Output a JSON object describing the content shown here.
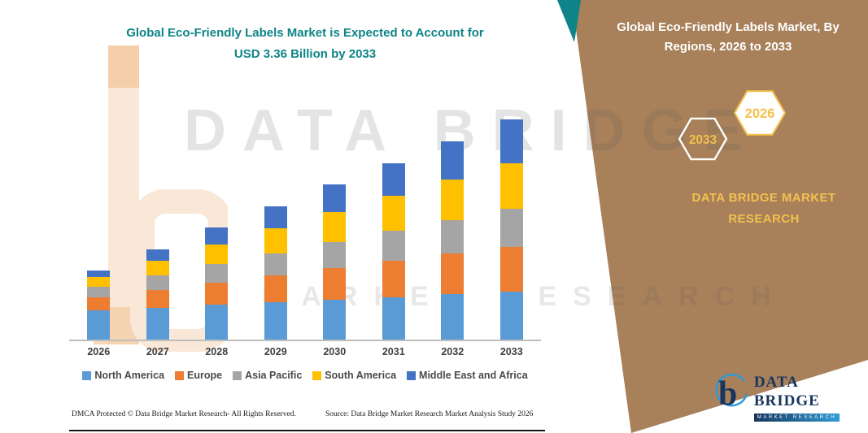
{
  "title": {
    "line1": "Global Eco-Friendly Labels Market is Expected to Account for",
    "line2": "USD 3.36 Billion by 2033"
  },
  "panel": {
    "heading": "Global Eco-Friendly Labels Market, By Regions, 2026 to 2033",
    "hexagons": [
      {
        "label": "2033",
        "style": "outline"
      },
      {
        "label": "2026",
        "style": "filled"
      }
    ],
    "brand_line1": "DATA BRIDGE MARKET",
    "brand_line2": "RESEARCH"
  },
  "watermark": {
    "line1": "DATA BRIDGE",
    "line2": "MARKET RESEARCH"
  },
  "colors": {
    "title_teal": "#0E8486",
    "panel_brown": "#A8805A",
    "accent_teal": "#0E8388",
    "gold": "#F2C14E",
    "logo_navy": "#17365D",
    "logo_blue": "#2E9BD6"
  },
  "chart_data": {
    "type": "bar",
    "stacked": true,
    "title": "Global Eco-Friendly Labels Market is Expected to Account for USD 3.36 Billion by 2033",
    "unit": "USD Billion",
    "categories": [
      "2026",
      "2027",
      "2028",
      "2029",
      "2030",
      "2031",
      "2032",
      "2033"
    ],
    "series": [
      {
        "name": "North America",
        "color": "#5B9BD5",
        "values": [
          0.45,
          0.49,
          0.53,
          0.57,
          0.61,
          0.65,
          0.69,
          0.73
        ]
      },
      {
        "name": "Europe",
        "color": "#ED7D31",
        "values": [
          0.2,
          0.27,
          0.34,
          0.41,
          0.48,
          0.55,
          0.62,
          0.69
        ]
      },
      {
        "name": "Asia Pacific",
        "color": "#A5A5A5",
        "values": [
          0.16,
          0.22,
          0.28,
          0.34,
          0.4,
          0.46,
          0.52,
          0.58
        ]
      },
      {
        "name": "South America",
        "color": "#FFC000",
        "values": [
          0.14,
          0.22,
          0.3,
          0.38,
          0.46,
          0.54,
          0.62,
          0.7
        ]
      },
      {
        "name": "Middle East and Africa",
        "color": "#4472C4",
        "values": [
          0.1,
          0.18,
          0.26,
          0.34,
          0.42,
          0.5,
          0.58,
          0.66
        ]
      }
    ],
    "xlabel": "",
    "ylabel": "",
    "ylim": [
      0,
      3.6
    ],
    "grid": false,
    "legend_position": "bottom"
  },
  "footer": {
    "dmca": "DMCA Protected © Data Bridge Market Research-  All Rights Reserved.",
    "source": "Source: Data Bridge Market Research  Market Analysis Study 2026"
  },
  "logo": {
    "wordmark": "DATA BRIDGE",
    "tagline": "MARKET RESEARCH"
  }
}
